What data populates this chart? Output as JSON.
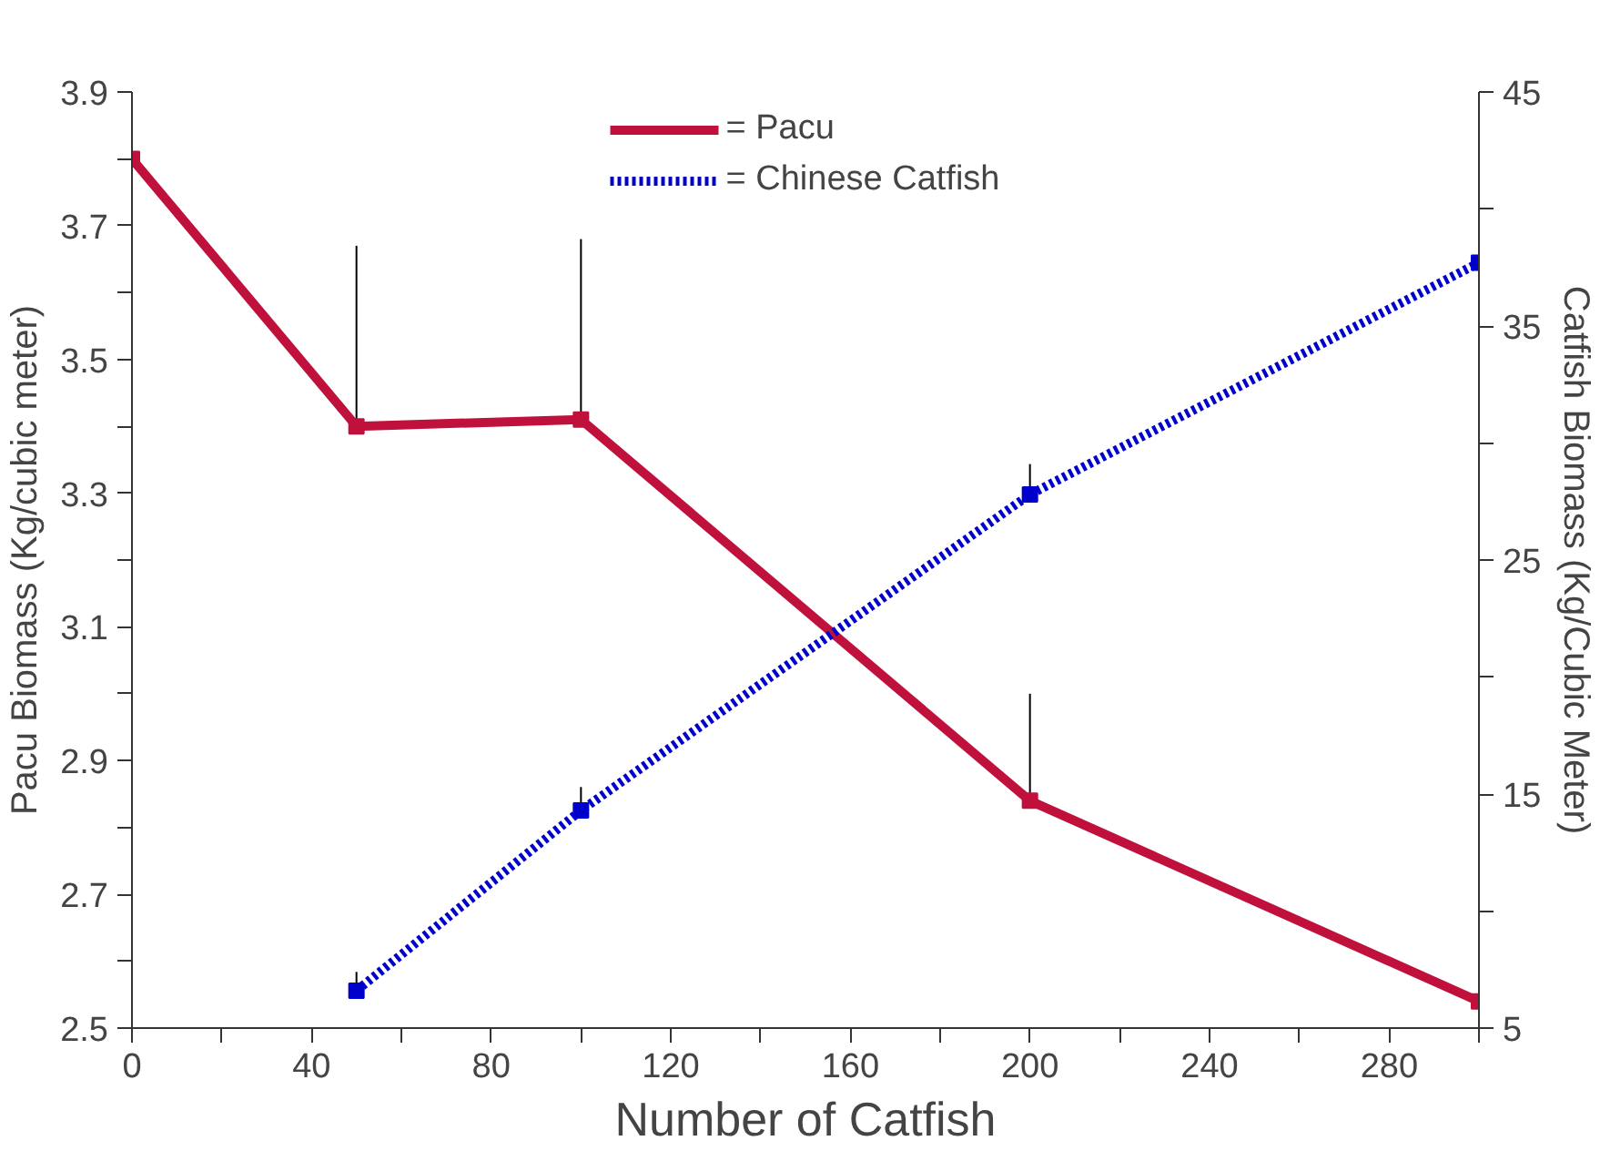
{
  "chart_data": {
    "type": "line",
    "xlabel": "Number of Catfish",
    "ylabel": "Pacu Biomass (Kg/cubic meter)",
    "y2label": "Catfish Biomass (Kg/Cubic Meter)",
    "xlim": [
      0,
      300
    ],
    "ylim": [
      2.5,
      3.9
    ],
    "y2lim": [
      5,
      45
    ],
    "xticks": [
      0,
      {
        "value": 20,
        "label": null
      },
      40,
      {
        "value": 60,
        "label": null
      },
      80,
      {
        "value": 100,
        "label": null
      },
      120,
      {
        "value": 140,
        "label": null
      },
      160,
      {
        "value": 180,
        "label": null
      },
      200,
      {
        "value": 220,
        "label": null
      },
      240,
      {
        "value": 260,
        "label": null
      },
      280,
      {
        "value": 300,
        "label": null
      }
    ],
    "yticks": [
      2.5,
      {
        "value": 2.6,
        "label": null
      },
      2.7,
      {
        "value": 2.8,
        "label": null
      },
      2.9,
      {
        "value": 3.0,
        "label": null
      },
      3.1,
      {
        "value": 3.2,
        "label": null
      },
      3.3,
      {
        "value": 3.4,
        "label": null
      },
      3.5,
      {
        "value": 3.6,
        "label": null
      },
      3.7,
      {
        "value": 3.8,
        "label": null
      },
      3.9
    ],
    "y2ticks": [
      5,
      {
        "value": 10,
        "label": null
      },
      15,
      {
        "value": 20,
        "label": null
      },
      25,
      {
        "value": 30,
        "label": null
      },
      35,
      {
        "value": 40,
        "label": null
      },
      45
    ],
    "grid": false,
    "legend": "top",
    "marker": "square",
    "series": [
      {
        "name": "= Pacu",
        "color": "#c0103c",
        "line_style": "solid",
        "x": [
          0,
          50,
          100,
          200,
          300
        ],
        "values": [
          3.8,
          3.4,
          3.41,
          2.84,
          2.54
        ],
        "errors": [
          [
            3.8,
            3.88
          ],
          [
            3.4,
            3.67
          ],
          [
            3.41,
            3.68
          ],
          [
            2.84,
            3.0
          ],
          [
            2.54,
            3.12
          ]
        ]
      },
      {
        "name": "= Chinese Catfish",
        "color": "#0000cc",
        "line_style": "dotted",
        "axis": "y2",
        "x": [
          50,
          100,
          200,
          300
        ],
        "values": [
          6.6,
          14.3,
          27.8,
          37.7
        ],
        "errors": [
          [
            6.6,
            7.4
          ],
          [
            14.3,
            15.3
          ],
          [
            27.8,
            29.1
          ],
          [
            37.7,
            43.6
          ]
        ]
      }
    ]
  }
}
